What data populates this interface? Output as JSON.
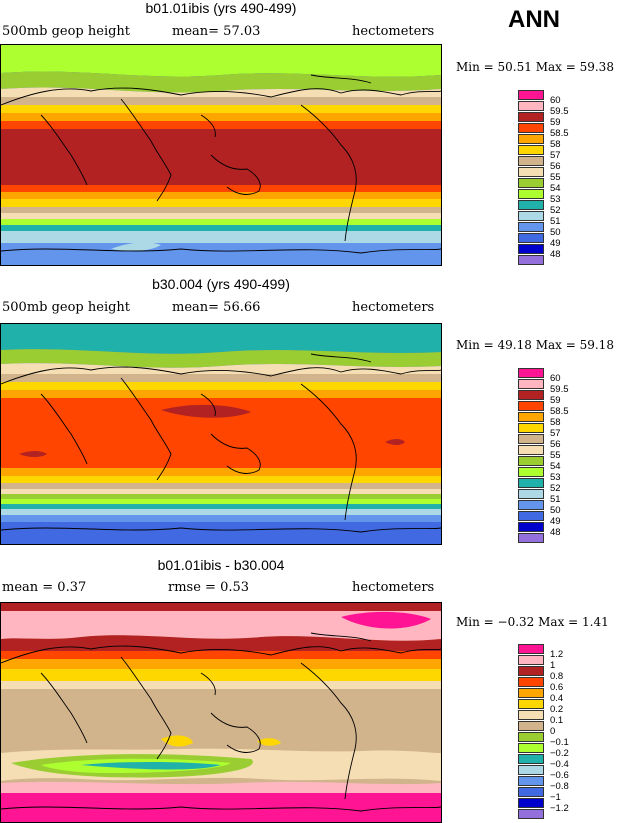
{
  "season_label": "ANN",
  "panels": [
    {
      "title": "b01.01ibis (yrs 490-499)",
      "left_label": "500mb geop height",
      "mid_label": "mean=  57.03",
      "right_label": "hectometers",
      "min_max": "Min =   50.51  Max =   59.38",
      "legend_levels": [
        "60",
        "59.5",
        "59",
        "58.5",
        "58",
        "57",
        "56",
        "55",
        "54",
        "53",
        "52",
        "51",
        "50",
        "49",
        "48"
      ],
      "legend_colors": [
        "#ff1493",
        "#ffb6c1",
        "#b22222",
        "#ff4500",
        "#ffa500",
        "#ffd700",
        "#d2b48c",
        "#f5deb3",
        "#9acd32",
        "#adff2f",
        "#20b2aa",
        "#add8e6",
        "#6495ed",
        "#4169e1",
        "#0000cd",
        "#9370db"
      ]
    },
    {
      "title": "b30.004 (yrs 490-499)",
      "left_label": "500mb geop height",
      "mid_label": "mean=  56.66",
      "right_label": "hectometers",
      "min_max": "Min =   49.18  Max =   59.18",
      "legend_levels": [
        "60",
        "59.5",
        "59",
        "58.5",
        "58",
        "57",
        "56",
        "55",
        "54",
        "53",
        "52",
        "51",
        "50",
        "49",
        "48"
      ],
      "legend_colors": [
        "#ff1493",
        "#ffb6c1",
        "#b22222",
        "#ff4500",
        "#ffa500",
        "#ffd700",
        "#d2b48c",
        "#f5deb3",
        "#9acd32",
        "#adff2f",
        "#20b2aa",
        "#add8e6",
        "#6495ed",
        "#4169e1",
        "#0000cd",
        "#9370db"
      ]
    },
    {
      "title": "b01.01ibis - b30.004",
      "left_label": "mean =    0.37",
      "mid_label": "rmse =    0.53",
      "right_label": "hectometers",
      "min_max": "Min =   −0.32  Max =    1.41",
      "legend_levels": [
        "1.2",
        "1",
        "0.8",
        "0.6",
        "0.4",
        "0.2",
        "0.1",
        "0",
        "−0.1",
        "−0.2",
        "−0.4",
        "−0.6",
        "−0.8",
        "−1",
        "−1.2"
      ],
      "legend_colors": [
        "#ff1493",
        "#ffb6c1",
        "#b22222",
        "#ff4500",
        "#ffa500",
        "#ffd700",
        "#f5deb3",
        "#d2b48c",
        "#9acd32",
        "#adff2f",
        "#20b2aa",
        "#add8e6",
        "#6495ed",
        "#4169e1",
        "#0000cd",
        "#9370db"
      ]
    }
  ]
}
